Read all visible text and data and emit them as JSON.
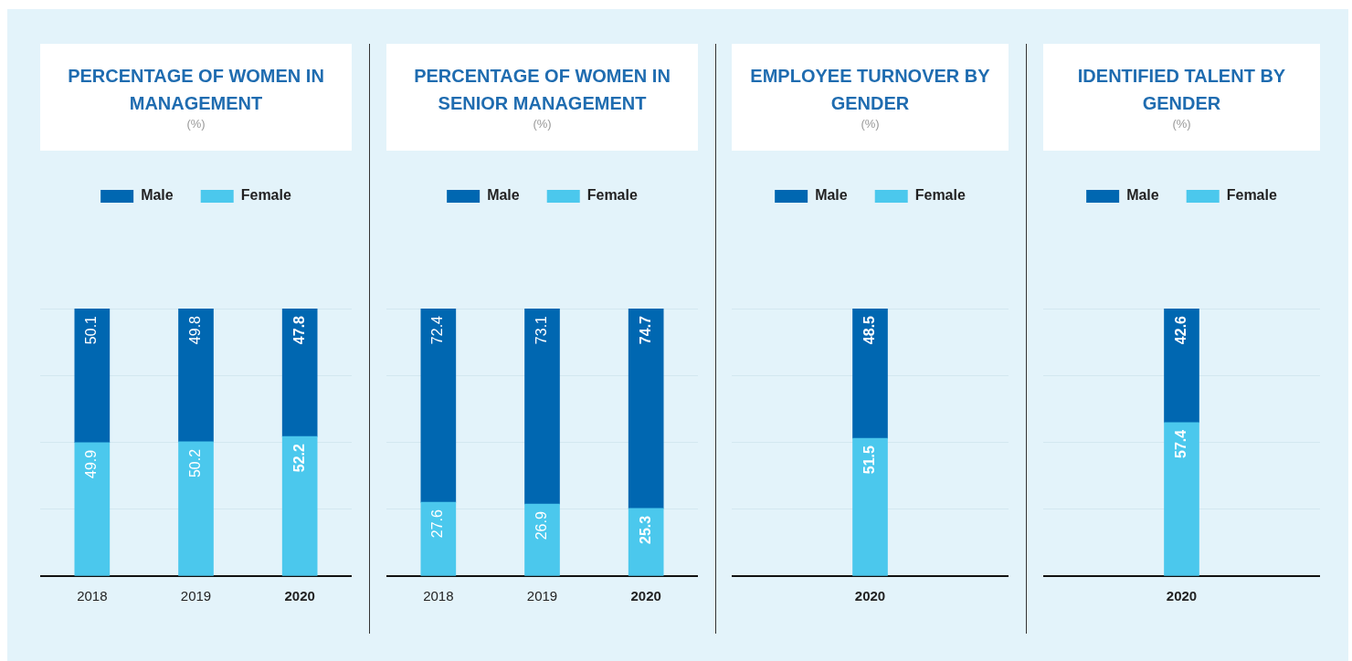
{
  "chart_data": [
    {
      "type": "bar",
      "title": "PERCENTAGE OF WOMEN IN MANAGEMENT",
      "subtitle": "(%)",
      "categories": [
        "2018",
        "2019",
        "2020"
      ],
      "stacked": true,
      "ylim": [
        0,
        100
      ],
      "yticks": [
        {
          "value": 0,
          "label": null
        },
        {
          "value": 25,
          "label": null
        },
        {
          "value": 50,
          "label": null
        },
        {
          "value": 75,
          "label": null
        },
        {
          "value": 100,
          "label": null
        }
      ],
      "grid": "y",
      "legend": "top",
      "tick_labels": "x",
      "data_labels": true,
      "series": [
        {
          "name": "Female",
          "color": "#4bc8ed",
          "values": [
            49.9,
            50.2,
            52.2
          ]
        },
        {
          "name": "Male",
          "color": "#0067b1",
          "values": [
            50.1,
            49.8,
            47.8
          ]
        }
      ]
    },
    {
      "type": "bar",
      "title": "PERCENTAGE OF WOMEN IN SENIOR MANAGEMENT",
      "subtitle": "(%)",
      "categories": [
        "2018",
        "2019",
        "2020"
      ],
      "stacked": true,
      "ylim": [
        0,
        100
      ],
      "yticks": [
        {
          "value": 0,
          "label": null
        },
        {
          "value": 25,
          "label": null
        },
        {
          "value": 50,
          "label": null
        },
        {
          "value": 75,
          "label": null
        },
        {
          "value": 100,
          "label": null
        }
      ],
      "grid": "y",
      "legend": "top",
      "tick_labels": "x",
      "data_labels": true,
      "series": [
        {
          "name": "Female",
          "color": "#4bc8ed",
          "values": [
            27.6,
            26.9,
            25.3
          ]
        },
        {
          "name": "Male",
          "color": "#0067b1",
          "values": [
            72.4,
            73.1,
            74.7
          ]
        }
      ]
    },
    {
      "type": "bar",
      "title": "EMPLOYEE TURNOVER BY GENDER",
      "subtitle": "(%)",
      "categories": [
        "2020"
      ],
      "stacked": true,
      "ylim": [
        0,
        100
      ],
      "yticks": [
        {
          "value": 0,
          "label": null
        },
        {
          "value": 25,
          "label": null
        },
        {
          "value": 50,
          "label": null
        },
        {
          "value": 75,
          "label": null
        },
        {
          "value": 100,
          "label": null
        }
      ],
      "grid": "y",
      "legend": "top",
      "tick_labels": "x",
      "data_labels": true,
      "series": [
        {
          "name": "Female",
          "color": "#4bc8ed",
          "values": [
            51.5
          ]
        },
        {
          "name": "Male",
          "color": "#0067b1",
          "values": [
            48.5
          ]
        }
      ]
    },
    {
      "type": "bar",
      "title": "IDENTIFIED TALENT BY GENDER",
      "subtitle": "(%)",
      "categories": [
        "2020"
      ],
      "stacked": true,
      "ylim": [
        0,
        100
      ],
      "yticks": [
        {
          "value": 0,
          "label": null
        },
        {
          "value": 25,
          "label": null
        },
        {
          "value": 50,
          "label": null
        },
        {
          "value": 75,
          "label": null
        },
        {
          "value": 100,
          "label": null
        }
      ],
      "grid": "y",
      "legend": "top",
      "tick_labels": "x",
      "data_labels": true,
      "series": [
        {
          "name": "Female",
          "color": "#4bc8ed",
          "values": [
            57.4
          ]
        },
        {
          "name": "Male",
          "color": "#0067b1",
          "values": [
            42.6
          ]
        }
      ]
    }
  ]
}
